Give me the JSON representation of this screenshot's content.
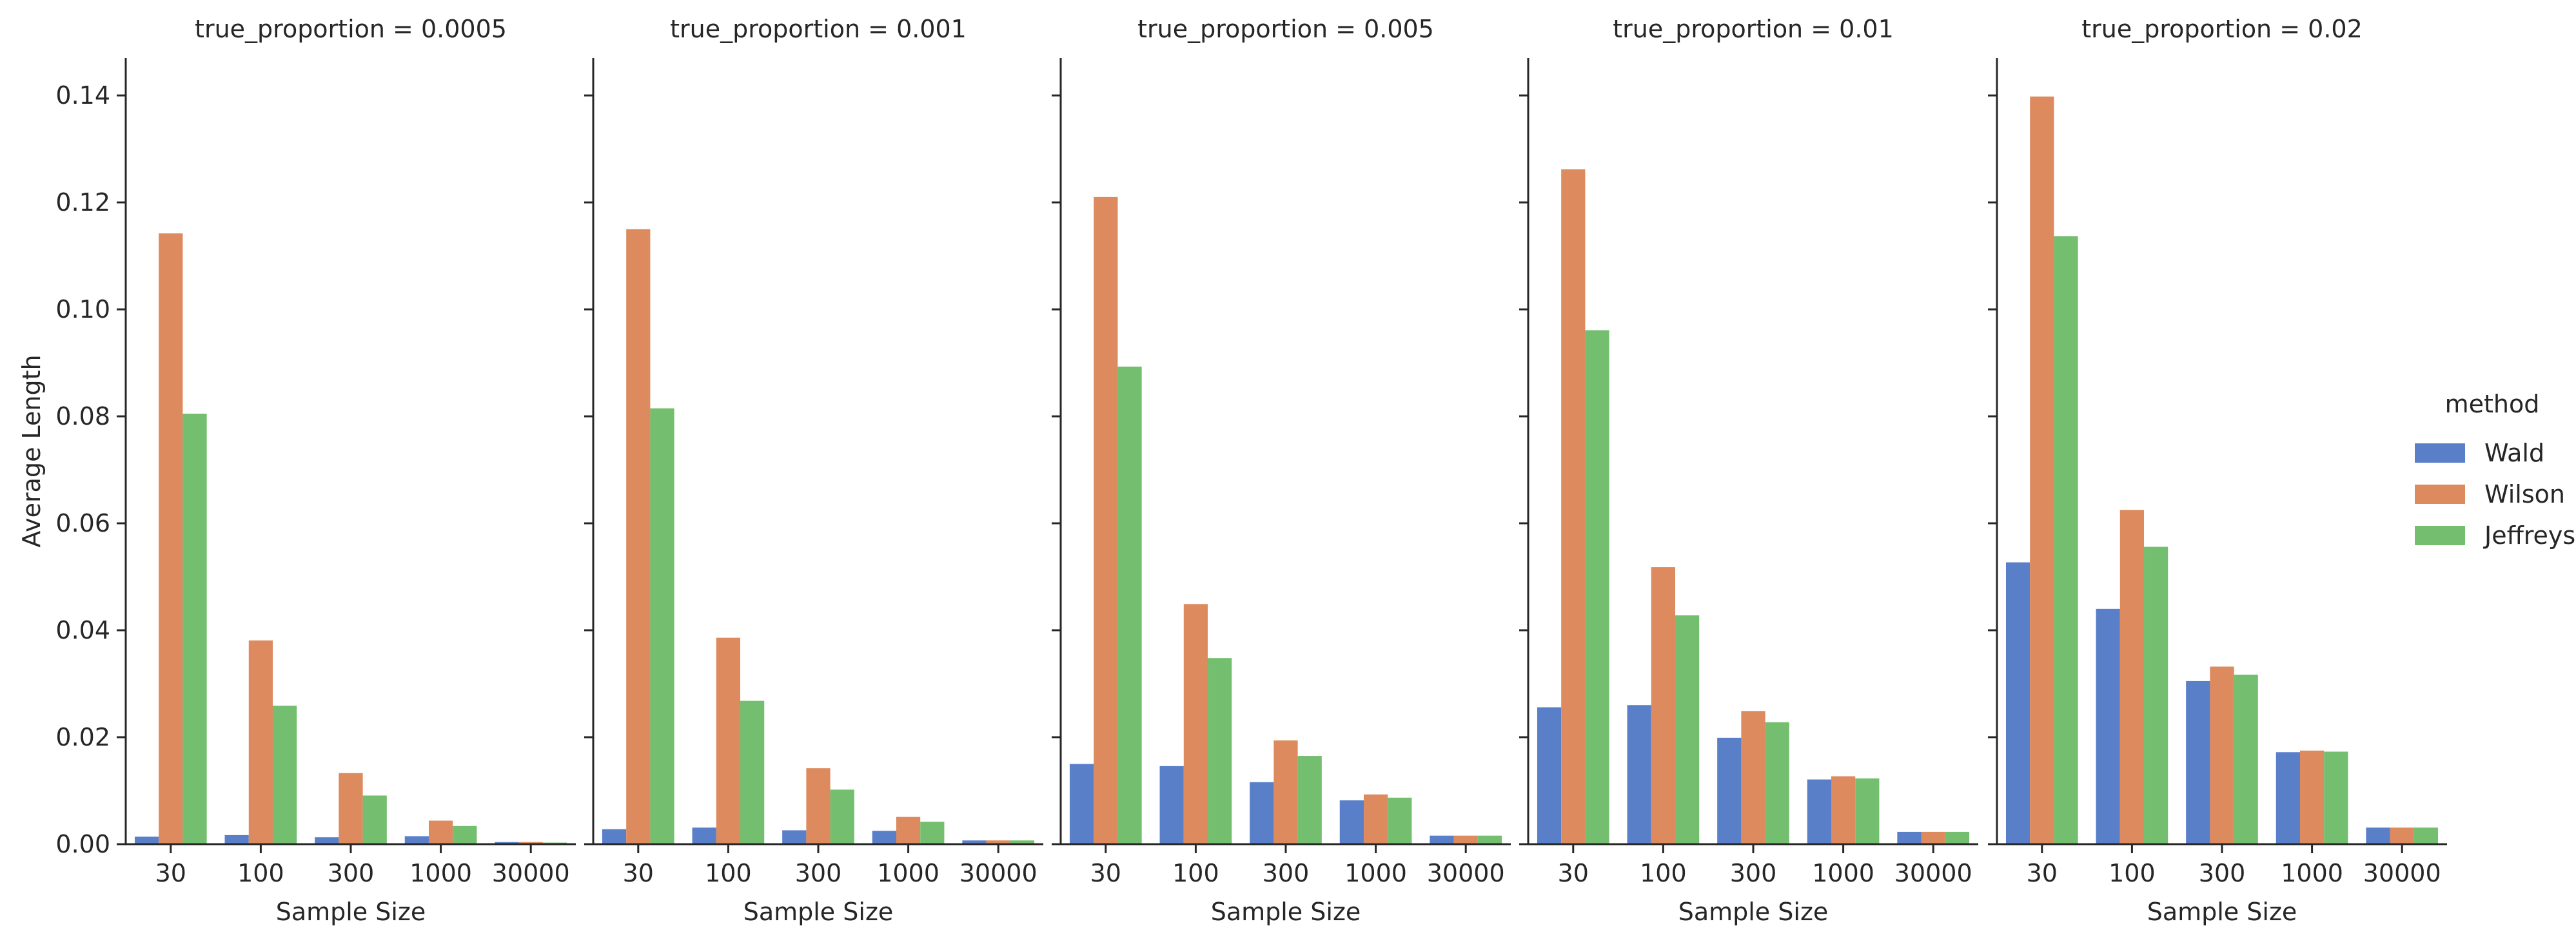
{
  "chart_data": {
    "type": "bar",
    "facet_variable": "true_proportion",
    "facet_title_template": "true_proportion = {v}",
    "facets": [
      "0.0005",
      "0.001",
      "0.005",
      "0.01",
      "0.02"
    ],
    "categories": [
      "30",
      "100",
      "300",
      "1000",
      "30000"
    ],
    "xlabel": "Sample Size",
    "ylabel": "Average Length",
    "ylim": [
      0,
      0.147
    ],
    "yticks": [
      0.0,
      0.02,
      0.04,
      0.06,
      0.08,
      0.1,
      0.12,
      0.14
    ],
    "ytick_labels": [
      "0.00",
      "0.02",
      "0.04",
      "0.06",
      "0.08",
      "0.10",
      "0.12",
      "0.14"
    ],
    "grid": false,
    "legend": {
      "title": "method",
      "placement": "right",
      "entries": [
        "Wald",
        "Wilson",
        "Jeffreys"
      ]
    },
    "colors": {
      "Wald": "#5a7fc9",
      "Wilson": "#dc8a5e",
      "Jeffreys": "#74bf6f"
    },
    "panels": [
      {
        "series": [
          {
            "name": "Wald",
            "values": [
              0.0014,
              0.0017,
              0.0013,
              0.0015,
              0.0004
            ]
          },
          {
            "name": "Wilson",
            "values": [
              0.1142,
              0.0381,
              0.0133,
              0.0044,
              0.0004
            ]
          },
          {
            "name": "Jeffreys",
            "values": [
              0.0805,
              0.0259,
              0.0091,
              0.0034,
              0.0003
            ]
          }
        ]
      },
      {
        "series": [
          {
            "name": "Wald",
            "values": [
              0.0028,
              0.0031,
              0.0026,
              0.0025,
              0.0007
            ]
          },
          {
            "name": "Wilson",
            "values": [
              0.115,
              0.0386,
              0.0142,
              0.0051,
              0.0007
            ]
          },
          {
            "name": "Jeffreys",
            "values": [
              0.0815,
              0.0268,
              0.0102,
              0.0042,
              0.0007
            ]
          }
        ]
      },
      {
        "series": [
          {
            "name": "Wald",
            "values": [
              0.015,
              0.0146,
              0.0116,
              0.0082,
              0.0016
            ]
          },
          {
            "name": "Wilson",
            "values": [
              0.121,
              0.0449,
              0.0194,
              0.0093,
              0.0016
            ]
          },
          {
            "name": "Jeffreys",
            "values": [
              0.0893,
              0.0348,
              0.0165,
              0.0087,
              0.0016
            ]
          }
        ]
      },
      {
        "series": [
          {
            "name": "Wald",
            "values": [
              0.0256,
              0.026,
              0.0199,
              0.0121,
              0.0023
            ]
          },
          {
            "name": "Wilson",
            "values": [
              0.1262,
              0.0518,
              0.0249,
              0.0127,
              0.0023
            ]
          },
          {
            "name": "Jeffreys",
            "values": [
              0.0961,
              0.0428,
              0.0228,
              0.0123,
              0.0023
            ]
          }
        ]
      },
      {
        "series": [
          {
            "name": "Wald",
            "values": [
              0.0527,
              0.044,
              0.0305,
              0.0172,
              0.0031
            ]
          },
          {
            "name": "Wilson",
            "values": [
              0.1398,
              0.0625,
              0.0332,
              0.0175,
              0.0031
            ]
          },
          {
            "name": "Jeffreys",
            "values": [
              0.1137,
              0.0556,
              0.0317,
              0.0173,
              0.0031
            ]
          }
        ]
      }
    ]
  }
}
